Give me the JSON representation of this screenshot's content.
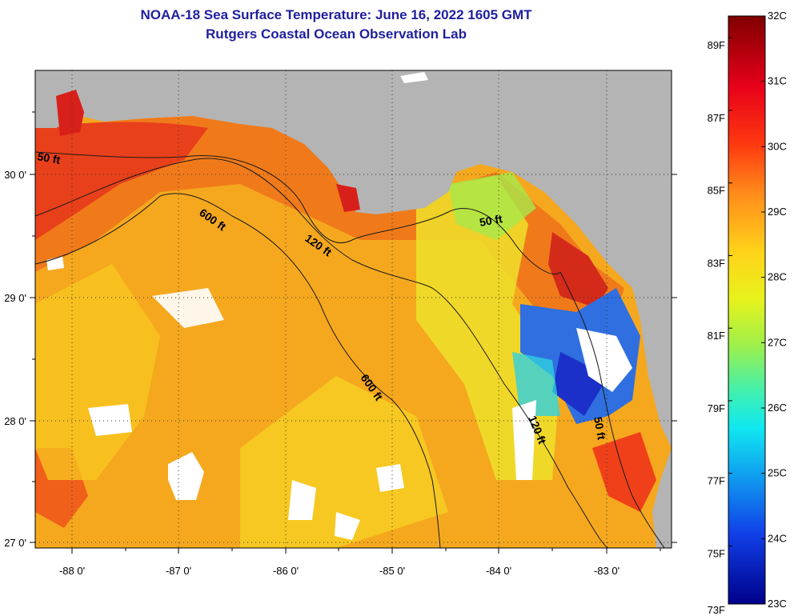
{
  "title": {
    "line1": "NOAA-18 Sea Surface Temperature:  June 16, 2022 1605 GMT",
    "line2": "Rutgers Coastal Ocean Observation Lab"
  },
  "map": {
    "longitude_labels": [
      "-88 0'",
      "-87 0'",
      "-86 0'",
      "-85 0'",
      "-84 0'",
      "-83 0'"
    ],
    "latitude_labels": [
      "30 0'",
      "29 0'",
      "28 0'",
      "27 0'"
    ],
    "contours": [
      {
        "label": "50 ft",
        "depth_ft": 50
      },
      {
        "label": "120 ft",
        "depth_ft": 120
      },
      {
        "label": "600 ft",
        "depth_ft": 600
      },
      {
        "label": "600 ft",
        "depth_ft": 600
      },
      {
        "label": "50 ft",
        "depth_ft": 50
      },
      {
        "label": "120 ft",
        "depth_ft": 120
      },
      {
        "label": "50 ft",
        "depth_ft": 50
      }
    ],
    "colors": {
      "land": "#b4b4b4",
      "cloud": "#ffffff",
      "warm": "#e8451a",
      "mid": "#f7a21c",
      "cool": "#2f4fd6"
    }
  },
  "colorbar": {
    "fahrenheit": [
      "89F",
      "87F",
      "85F",
      "83F",
      "81F",
      "79F",
      "77F",
      "75F",
      "73F"
    ],
    "celsius": [
      "32C",
      "31C",
      "30C",
      "29C",
      "28C",
      "27C",
      "26C",
      "25C",
      "24C",
      "23C"
    ],
    "range_c": [
      23,
      32
    ]
  }
}
